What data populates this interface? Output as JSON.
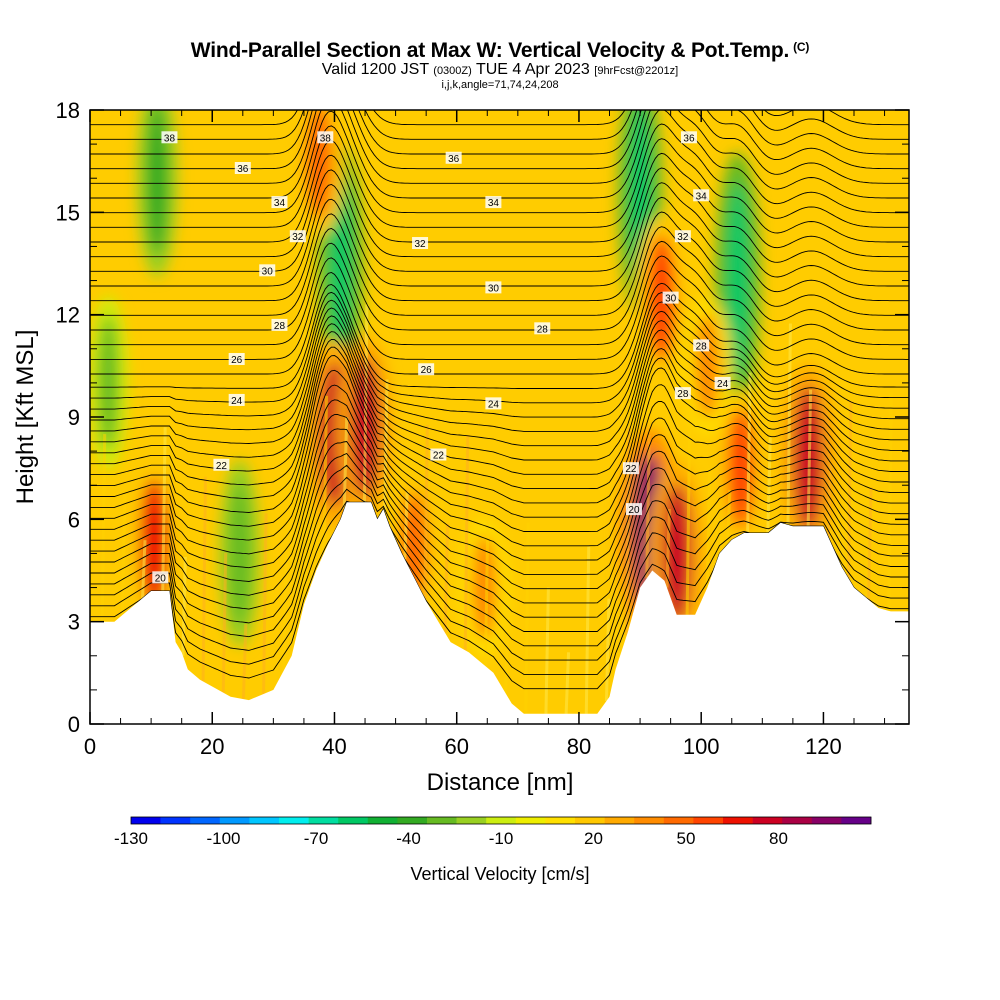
{
  "header": {
    "title": "Wind-Parallel Section at Max W: Vertical Velocity & Pot.Temp.",
    "copyright": "(C)",
    "valid_prefix": "Valid 1200 JST",
    "valid_utc": "(0300Z)",
    "valid_date": "TUE 4 Apr 2023",
    "forecast": "[9hrFcst@2201z]",
    "indices": "i,j,k,angle=71,74,24,208"
  },
  "chart_data": {
    "type": "heatmap",
    "xlabel": "Distance [nm]",
    "ylabel": "Height [Kft MSL]",
    "xlim": [
      0,
      134
    ],
    "ylim": [
      0,
      18
    ],
    "x_ticks": [
      0,
      20,
      40,
      60,
      80,
      100,
      120
    ],
    "y_ticks": [
      0,
      3,
      6,
      9,
      12,
      15,
      18
    ],
    "grid": false,
    "colorbar": {
      "title": "Vertical Velocity [cm/s]",
      "tick_labels": [
        "-130",
        "-100",
        "-70",
        "-40",
        "-10",
        "20",
        "50",
        "80"
      ],
      "tick_values": [
        -130,
        -100,
        -70,
        -40,
        -10,
        20,
        50,
        80
      ],
      "range": [
        -130,
        110
      ],
      "step": 10,
      "colors": [
        "#0000ee",
        "#0033ff",
        "#0066ff",
        "#0099ff",
        "#00c6ff",
        "#00eeee",
        "#00dda0",
        "#00c864",
        "#11b033",
        "#33aa22",
        "#66bb22",
        "#99d022",
        "#ccee11",
        "#eeee00",
        "#ffe000",
        "#ffc800",
        "#ffaa00",
        "#ff8c00",
        "#ff6a00",
        "#ff4400",
        "#ee1100",
        "#cc0022",
        "#aa0044",
        "#880066",
        "#660088"
      ]
    },
    "terrain_kft": [
      [
        0,
        3.0
      ],
      [
        4,
        3.0
      ],
      [
        6,
        3.3
      ],
      [
        8,
        3.6
      ],
      [
        10,
        3.9
      ],
      [
        13,
        3.9
      ],
      [
        14,
        2.4
      ],
      [
        15,
        2.1
      ],
      [
        16,
        1.6
      ],
      [
        18,
        1.3
      ],
      [
        20,
        1.1
      ],
      [
        23,
        0.8
      ],
      [
        26,
        0.7
      ],
      [
        30,
        1.0
      ],
      [
        33,
        2.0
      ],
      [
        35,
        3.5
      ],
      [
        37,
        4.5
      ],
      [
        39,
        5.3
      ],
      [
        41,
        6.0
      ],
      [
        42,
        6.5
      ],
      [
        46,
        6.5
      ],
      [
        47,
        6.0
      ],
      [
        48,
        6.3
      ],
      [
        49,
        5.8
      ],
      [
        51,
        5.0
      ],
      [
        53,
        4.3
      ],
      [
        55,
        3.6
      ],
      [
        57,
        3.0
      ],
      [
        59,
        2.4
      ],
      [
        62,
        2.1
      ],
      [
        64,
        1.8
      ],
      [
        66,
        1.5
      ],
      [
        69,
        0.6
      ],
      [
        71,
        0.3
      ],
      [
        76,
        0.3
      ],
      [
        80,
        0.3
      ],
      [
        83,
        0.3
      ],
      [
        85,
        0.8
      ],
      [
        86,
        1.6
      ],
      [
        88,
        2.7
      ],
      [
        90,
        4.0
      ],
      [
        92,
        4.5
      ],
      [
        94,
        4.2
      ],
      [
        96,
        3.2
      ],
      [
        99,
        3.2
      ],
      [
        101,
        4.0
      ],
      [
        103,
        5.0
      ],
      [
        105,
        5.4
      ],
      [
        107,
        5.6
      ],
      [
        109,
        5.6
      ],
      [
        111,
        5.6
      ],
      [
        113,
        5.9
      ],
      [
        115,
        5.8
      ],
      [
        117,
        5.8
      ],
      [
        120,
        5.8
      ],
      [
        123,
        4.6
      ],
      [
        125,
        4.0
      ],
      [
        127,
        3.7
      ],
      [
        129,
        3.4
      ],
      [
        131,
        3.3
      ],
      [
        134,
        3.3
      ]
    ],
    "updrafts": [
      {
        "x": 10.5,
        "y": 5.3,
        "w": 70
      },
      {
        "x": 40.0,
        "y": 8.5,
        "w": 85
      },
      {
        "x": 45.0,
        "y": 8.7,
        "w": 80
      },
      {
        "x": 37.5,
        "y": 16.5,
        "w": 55
      },
      {
        "x": 53.0,
        "y": 5.2,
        "w": 50
      },
      {
        "x": 64.5,
        "y": 4.0,
        "w": 45
      },
      {
        "x": 91.5,
        "y": 5.6,
        "w": 100
      },
      {
        "x": 96.0,
        "y": 5.0,
        "w": 80
      },
      {
        "x": 93.5,
        "y": 12.5,
        "w": 65
      },
      {
        "x": 106.5,
        "y": 7.5,
        "w": 60
      },
      {
        "x": 117.5,
        "y": 7.8,
        "w": 85
      },
      {
        "x": 101.0,
        "y": 10.5,
        "w": 45
      }
    ],
    "downdrafts": [
      {
        "x": 41.0,
        "y": 13.5,
        "w": -55
      },
      {
        "x": 90.0,
        "y": 15.5,
        "w": -55
      },
      {
        "x": 106.0,
        "y": 13.0,
        "w": -60
      },
      {
        "x": 11.0,
        "y": 16.0,
        "w": -35
      },
      {
        "x": 24.5,
        "y": 5.0,
        "w": -30
      },
      {
        "x": 3.0,
        "y": 10.0,
        "w": -25
      }
    ],
    "isentropes_K": [
      20,
      22,
      24,
      26,
      28,
      30,
      32,
      34,
      36,
      38
    ],
    "isentrope_labels": [
      {
        "text": "38",
        "x": 13.0,
        "y": 17.2
      },
      {
        "text": "36",
        "x": 25.0,
        "y": 16.3
      },
      {
        "text": "34",
        "x": 31.0,
        "y": 15.3
      },
      {
        "text": "32",
        "x": 34.0,
        "y": 14.3
      },
      {
        "text": "30",
        "x": 29.0,
        "y": 13.3
      },
      {
        "text": "28",
        "x": 31.0,
        "y": 11.7
      },
      {
        "text": "26",
        "x": 24.0,
        "y": 10.7
      },
      {
        "text": "24",
        "x": 24.0,
        "y": 9.5
      },
      {
        "text": "22",
        "x": 21.5,
        "y": 7.6
      },
      {
        "text": "20",
        "x": 11.5,
        "y": 4.3
      },
      {
        "text": "38",
        "x": 38.5,
        "y": 17.2
      },
      {
        "text": "36",
        "x": 59.5,
        "y": 16.6
      },
      {
        "text": "34",
        "x": 66.0,
        "y": 15.3
      },
      {
        "text": "32",
        "x": 54.0,
        "y": 14.1
      },
      {
        "text": "30",
        "x": 66.0,
        "y": 12.8
      },
      {
        "text": "28",
        "x": 74.0,
        "y": 11.6
      },
      {
        "text": "26",
        "x": 55.0,
        "y": 10.4
      },
      {
        "text": "24",
        "x": 66.0,
        "y": 9.4
      },
      {
        "text": "22",
        "x": 57.0,
        "y": 7.9
      },
      {
        "text": "36",
        "x": 98.0,
        "y": 17.2
      },
      {
        "text": "34",
        "x": 100.0,
        "y": 15.5
      },
      {
        "text": "32",
        "x": 97.0,
        "y": 14.3
      },
      {
        "text": "30",
        "x": 95.0,
        "y": 12.5
      },
      {
        "text": "28",
        "x": 100.0,
        "y": 11.1
      },
      {
        "text": "28",
        "x": 97.0,
        "y": 9.7
      },
      {
        "text": "24",
        "x": 103.5,
        "y": 10.0
      },
      {
        "text": "22",
        "x": 88.5,
        "y": 7.5
      },
      {
        "text": "20",
        "x": 89.0,
        "y": 6.3
      }
    ]
  }
}
